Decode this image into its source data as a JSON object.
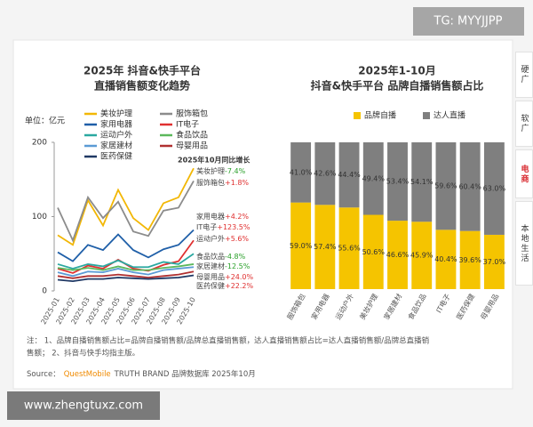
{
  "badge": "TG: MYYJJPP",
  "tabs": [
    "硬广",
    "软广",
    "电商",
    "本地生活"
  ],
  "active_tab": "电商",
  "chart_data": [
    {
      "type": "line",
      "title": [
        "2025年 抖音&快手平台",
        "直播销售额变化趋势"
      ],
      "y_label": "单位：亿元",
      "annotation_title": "2025年10月同比增长",
      "x": [
        "2025-01",
        "2025-02",
        "2025-03",
        "2025-04",
        "2025-05",
        "2025-06",
        "2025-07",
        "2025-08",
        "2025-09",
        "2025-10"
      ],
      "ylim": [
        0,
        200
      ],
      "yticks": [
        0,
        100,
        200
      ],
      "grid": false,
      "series": [
        {
          "name": "美妆护理",
          "color": "#f2b705",
          "growth": "-7.4%",
          "values": [
            75,
            62,
            122,
            88,
            136,
            98,
            82,
            118,
            126,
            165
          ]
        },
        {
          "name": "服饰箱包",
          "color": "#8c8c8c",
          "growth": "+1.8%",
          "values": [
            112,
            68,
            126,
            98,
            120,
            80,
            74,
            108,
            112,
            148
          ]
        },
        {
          "name": "家用电器",
          "color": "#1f5fa8",
          "growth": "+4.2%",
          "values": [
            52,
            40,
            62,
            55,
            76,
            55,
            45,
            56,
            62,
            82
          ]
        },
        {
          "name": "IT电子",
          "color": "#e03030",
          "growth": "+123.5%",
          "values": [
            30,
            24,
            34,
            30,
            42,
            30,
            27,
            35,
            40,
            68
          ]
        },
        {
          "name": "运动户外",
          "color": "#2aa8a0",
          "growth": "+5.6%",
          "values": [
            36,
            30,
            36,
            33,
            41,
            32,
            32,
            39,
            36,
            50
          ]
        },
        {
          "name": "食品饮品",
          "color": "#5cb85c",
          "growth": "-4.8%",
          "values": [
            31,
            28,
            31,
            28,
            33,
            28,
            28,
            31,
            33,
            36
          ]
        },
        {
          "name": "家居建材",
          "color": "#5b9bd5",
          "growth": "-12.5%",
          "values": [
            25,
            20,
            26,
            25,
            30,
            25,
            22,
            28,
            30,
            32
          ]
        },
        {
          "name": "母婴用品",
          "color": "#b03030",
          "growth": "+24.0%",
          "values": [
            20,
            17,
            20,
            20,
            22,
            20,
            18,
            20,
            22,
            26
          ]
        },
        {
          "name": "医药保健",
          "color": "#1f3864",
          "growth": "+22.2%",
          "values": [
            15,
            13,
            16,
            16,
            18,
            17,
            16,
            17,
            18,
            21
          ]
        }
      ]
    },
    {
      "type": "stacked_bar",
      "title": [
        "2025年1-10月",
        "抖音&快手平台 品牌自播销售额占比"
      ],
      "categories": [
        "服饰箱包",
        "家用电器",
        "运动户外",
        "美妆护理",
        "家居建材",
        "食品饮品",
        "IT电子",
        "医药保健",
        "母婴用品"
      ],
      "ylim": [
        0,
        100
      ],
      "series": [
        {
          "name": "品牌自播",
          "color": "#f5c400",
          "values": [
            59.0,
            57.4,
            55.6,
            50.6,
            46.6,
            45.9,
            40.4,
            39.6,
            37.0
          ],
          "value_labels": [
            "59.0%",
            "57.4%",
            "55.6%",
            "50.6%",
            "46.6%",
            "45.9%",
            "40.4%",
            "39.6%",
            "37.0%"
          ]
        },
        {
          "name": "达人直播",
          "color": "#7f7f7f",
          "values": [
            41.0,
            42.6,
            44.4,
            49.4,
            53.4,
            54.1,
            59.6,
            60.4,
            63.0
          ],
          "value_labels": [
            "41.0%",
            "42.6%",
            "44.4%",
            "49.4%",
            "53.4%",
            "54.1%",
            "59.6%",
            "60.4%",
            "63.0%"
          ]
        }
      ]
    }
  ],
  "notes": [
    "注： 1、品牌自播销售额占比=品牌自播销售额/品牌总直播销售额，达人直播销售额占比=达人直播销售额/品牌总直播销",
    "售额； 2、抖音与快手均指主版。"
  ],
  "source": {
    "prefix": "Source：",
    "brand": "QuestMobile",
    "rest": "TRUTH BRAND 品牌数据库 2025年10月"
  },
  "footer": "www.zhengtuxz.com"
}
